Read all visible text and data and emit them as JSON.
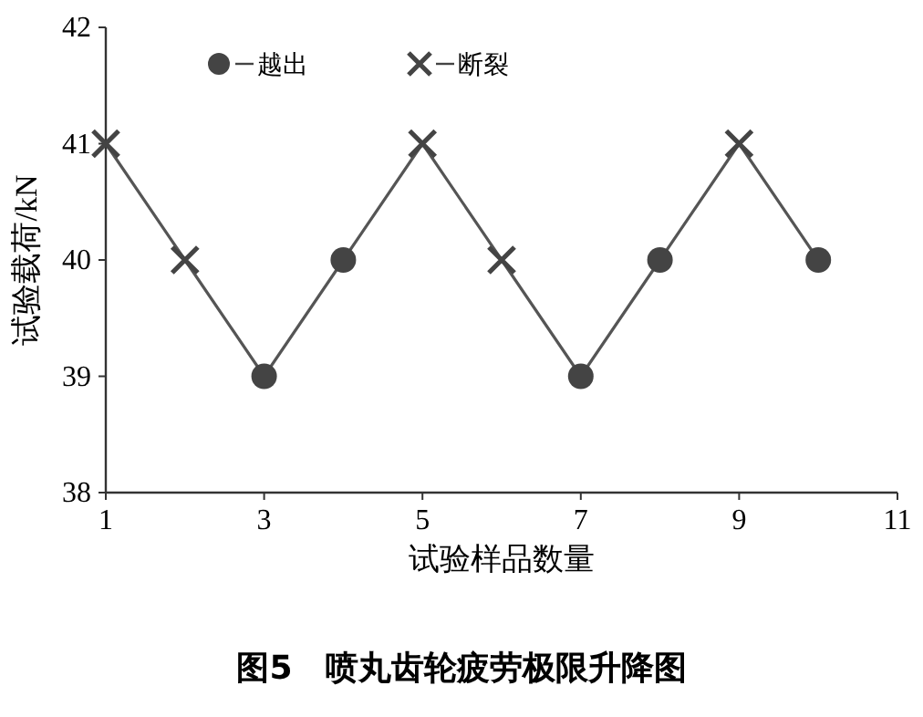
{
  "chart_data": {
    "type": "scatter",
    "title": "图5　喷丸齿轮疲劳极限升降图",
    "xlabel": "试验样品数量",
    "ylabel": "试验载荷/kN",
    "xlim": [
      1,
      11
    ],
    "xticks": [
      1,
      3,
      5,
      7,
      9,
      11
    ],
    "ylim": [
      38,
      42
    ],
    "yticks": [
      38,
      39,
      40,
      41,
      42
    ],
    "legend": "top left",
    "grid": false,
    "series": [
      {
        "type": "line",
        "color": "#555555",
        "marker": "none",
        "x": [
          1,
          2,
          3,
          4,
          5,
          6,
          7,
          8,
          9,
          10
        ],
        "values": [
          41,
          40,
          39,
          40,
          41,
          40,
          39,
          40,
          41,
          40
        ]
      },
      {
        "name": "越出",
        "color": "#444444",
        "marker": "circle",
        "x": [
          3,
          4,
          7,
          8,
          10
        ],
        "values": [
          39,
          40,
          39,
          40,
          40
        ]
      },
      {
        "name": "断裂",
        "color": "#444444",
        "marker": "cross",
        "x": [
          1,
          2,
          5,
          6,
          9
        ],
        "values": [
          41,
          40,
          41,
          40,
          41
        ]
      }
    ]
  }
}
